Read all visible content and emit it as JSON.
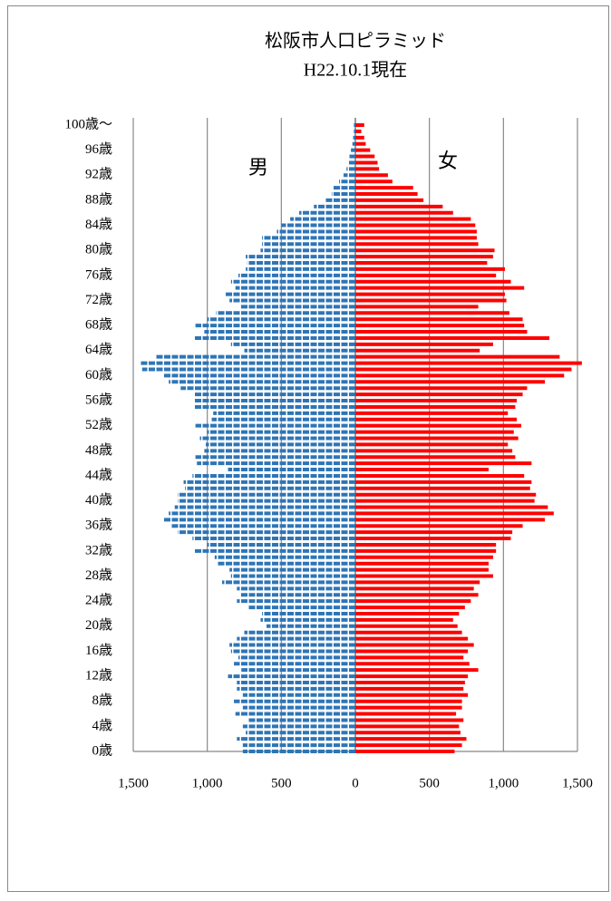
{
  "chart_data": {
    "type": "pyramid",
    "title": "松阪市人口ピラミッド",
    "subtitle": "H22.10.1現在",
    "categories": [
      "0歳",
      null,
      null,
      null,
      "4歳",
      null,
      null,
      null,
      "8歳",
      null,
      null,
      null,
      "12歳",
      null,
      null,
      null,
      "16歳",
      null,
      null,
      null,
      "20歳",
      null,
      null,
      null,
      "24歳",
      null,
      null,
      null,
      "28歳",
      null,
      null,
      null,
      "32歳",
      null,
      null,
      null,
      "36歳",
      null,
      null,
      null,
      "40歳",
      null,
      null,
      null,
      "44歳",
      null,
      null,
      null,
      "48歳",
      null,
      null,
      null,
      "52歳",
      null,
      null,
      null,
      "56歳",
      null,
      null,
      null,
      "60歳",
      null,
      null,
      null,
      "64歳",
      null,
      null,
      null,
      "68歳",
      null,
      null,
      null,
      "72歳",
      null,
      null,
      null,
      "76歳",
      null,
      null,
      null,
      "80歳",
      null,
      null,
      null,
      "84歳",
      null,
      null,
      null,
      "88歳",
      null,
      null,
      null,
      "92歳",
      null,
      null,
      null,
      "96歳",
      null,
      null,
      null,
      "100歳～"
    ],
    "series": [
      {
        "name": "男",
        "color": "#2e75b6",
        "side": "left",
        "values": [
          760,
          760,
          800,
          740,
          760,
          720,
          810,
          760,
          820,
          760,
          800,
          800,
          860,
          770,
          820,
          790,
          840,
          850,
          800,
          750,
          600,
          640,
          630,
          720,
          800,
          780,
          800,
          900,
          840,
          850,
          930,
          950,
          1090,
          1000,
          1100,
          1200,
          1240,
          1300,
          1260,
          1220,
          1200,
          1200,
          1150,
          1160,
          1100,
          860,
          1070,
          1080,
          1020,
          1010,
          1050,
          1000,
          1080,
          970,
          960,
          1090,
          1090,
          1090,
          1180,
          1260,
          1300,
          1440,
          1450,
          1350,
          750,
          840,
          1090,
          1020,
          1080,
          1000,
          940,
          780,
          850,
          880,
          810,
          840,
          790,
          740,
          730,
          740,
          640,
          630,
          630,
          530,
          500,
          440,
          380,
          280,
          200,
          160,
          150,
          110,
          80,
          60,
          50,
          40,
          30,
          20,
          15,
          10,
          10
        ]
      },
      {
        "name": "女",
        "color": "#ff0000",
        "side": "right",
        "values": [
          670,
          720,
          750,
          710,
          700,
          730,
          680,
          720,
          720,
          760,
          730,
          740,
          760,
          830,
          770,
          730,
          760,
          800,
          760,
          720,
          690,
          660,
          700,
          740,
          780,
          830,
          800,
          840,
          930,
          900,
          900,
          930,
          950,
          950,
          1050,
          1060,
          1130,
          1280,
          1340,
          1300,
          1210,
          1220,
          1180,
          1190,
          1140,
          900,
          1190,
          1080,
          1060,
          1030,
          1100,
          1070,
          1120,
          1090,
          1030,
          1080,
          1090,
          1130,
          1160,
          1280,
          1410,
          1460,
          1530,
          1380,
          840,
          930,
          1310,
          1160,
          1140,
          1130,
          1040,
          830,
          1020,
          1010,
          1140,
          1050,
          950,
          1010,
          890,
          930,
          940,
          830,
          820,
          820,
          810,
          780,
          660,
          590,
          460,
          420,
          390,
          250,
          220,
          160,
          150,
          130,
          100,
          70,
          60,
          40,
          60
        ]
      }
    ],
    "xlim": [
      -1500,
      1500
    ],
    "xticks": [
      {
        "value": -1500,
        "label": "1,500"
      },
      {
        "value": -1000,
        "label": "1,000"
      },
      {
        "value": -500,
        "label": "500"
      },
      0,
      500,
      {
        "value": 1000,
        "label": "1,000"
      },
      {
        "value": 1500,
        "label": "1,500"
      }
    ],
    "grid": true
  }
}
